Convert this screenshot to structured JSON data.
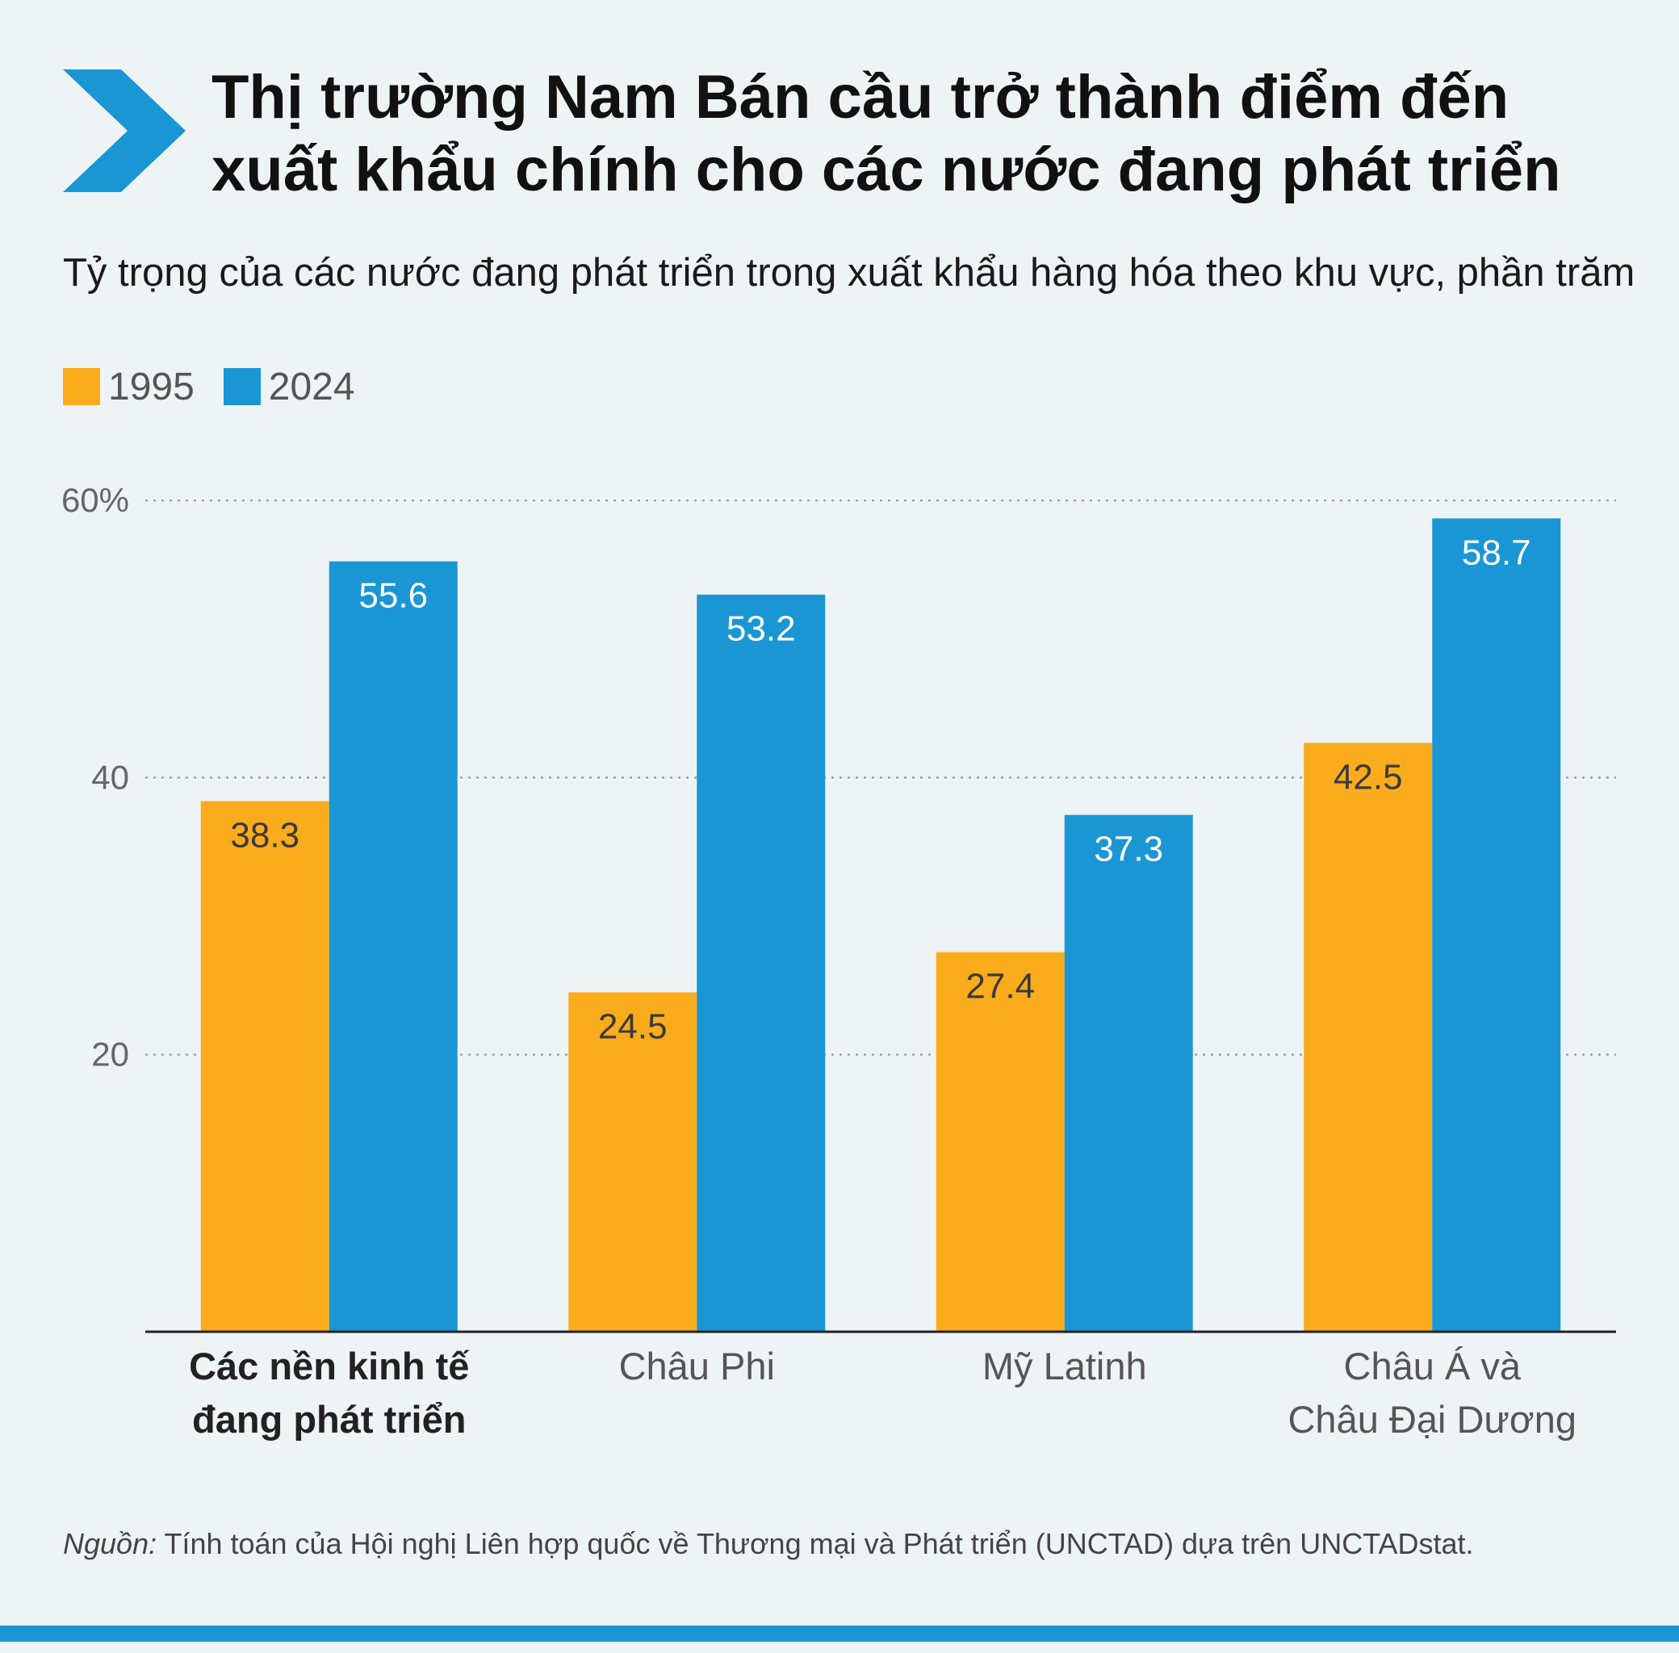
{
  "title": "Thị trường Nam Bán cầu trở thành điểm đến\nxuất khẩu chính cho các nước đang phát triển",
  "subtitle": "Tỷ trọng của các nước đang phát triển trong xuất khẩu hàng hóa theo khu vực, phần trăm",
  "icons": {
    "title_marker": "chevron-right-icon"
  },
  "colors": {
    "series_1995": "#fbac1c",
    "series_2024": "#1a96d4",
    "bottom_rule": "#1a96d4"
  },
  "chart": {
    "type": "bar",
    "categories": [
      {
        "lines": [
          "Các nền kinh tế",
          "đang phát triển"
        ],
        "bold": true
      },
      {
        "lines": [
          "Châu Phi"
        ],
        "bold": false
      },
      {
        "lines": [
          "Mỹ Latinh"
        ],
        "bold": false
      },
      {
        "lines": [
          "Châu Á và",
          "Châu Đại Dương"
        ],
        "bold": false
      }
    ],
    "series": [
      {
        "name": "1995",
        "color": "#fbac1c",
        "values": [
          38.3,
          24.5,
          27.4,
          42.5
        ],
        "labels": [
          "38.3",
          "24.5",
          "27.4",
          "42.5"
        ]
      },
      {
        "name": "2024",
        "color": "#1a96d4",
        "values": [
          55.6,
          53.2,
          37.3,
          58.7
        ],
        "labels": [
          "55.6",
          "53.2",
          "37.3",
          "58.7"
        ]
      }
    ],
    "ylim": [
      0,
      60
    ],
    "yticks": [
      {
        "value": 60,
        "label": "60%"
      },
      {
        "value": 40,
        "label": "40"
      },
      {
        "value": 20,
        "label": "20"
      }
    ],
    "grid": true,
    "legend_position": "top-left"
  },
  "source": {
    "lead": "Nguồn:",
    "text": " Tính toán của Hội nghị Liên hợp quốc về Thương mại và Phát triển (UNCTAD) dựa trên UNCTADstat."
  }
}
